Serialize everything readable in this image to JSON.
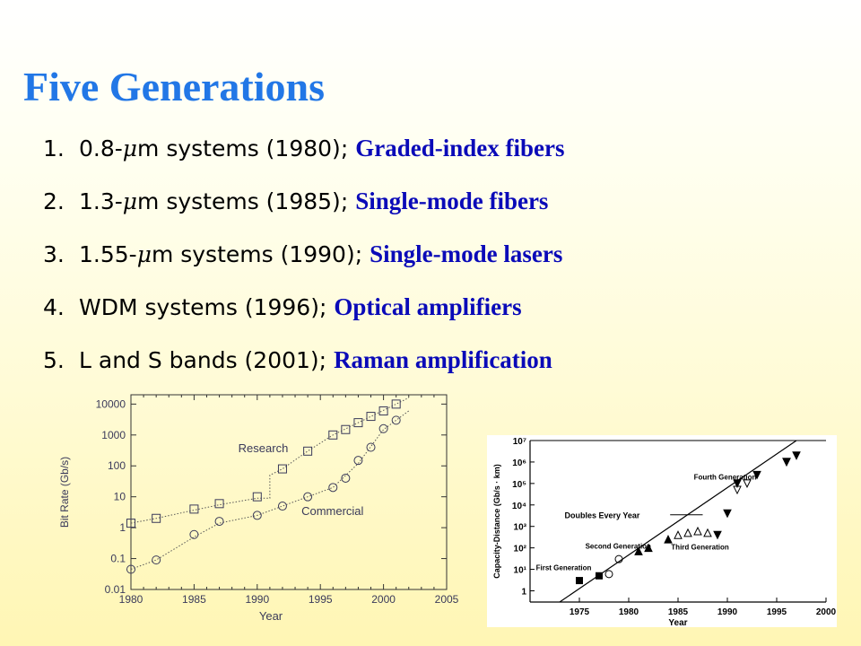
{
  "title": "Five Generations",
  "generations": [
    {
      "num": "1.",
      "wl_pre": "0.8-",
      "mu": "μ",
      "desc": "m systems (1980);",
      "tech": "Graded-index fibers"
    },
    {
      "num": "2.",
      "wl_pre": "1.3-",
      "mu": "μ",
      "desc": "m systems (1985);",
      "tech": "Single-mode fibers"
    },
    {
      "num": "3.",
      "wl_pre": "1.55-",
      "mu": "μ",
      "desc": "m systems (1990);",
      "tech": "Single-mode lasers"
    },
    {
      "num": "4.",
      "wl_pre": "",
      "mu": "",
      "desc": "WDM systems (1996);",
      "tech": "Optical amplifiers"
    },
    {
      "num": "5.",
      "wl_pre": "",
      "mu": "",
      "desc": "L and S bands (2001);",
      "tech": "Raman amplification"
    }
  ],
  "chart_data": [
    {
      "type": "scatter",
      "xlabel": "Year",
      "ylabel": "Bit Rate (Gb/s)",
      "xlim": [
        1980,
        2005
      ],
      "ylim": [
        0.01,
        20000
      ],
      "yscale": "log",
      "xticks": [
        1980,
        1985,
        1990,
        1995,
        2000,
        2005
      ],
      "yticks": [
        0.01,
        0.1,
        1,
        10,
        100,
        1000,
        10000
      ],
      "ytick_labels": [
        "0.01",
        "0.1",
        "1",
        "10",
        "100",
        "1000",
        "10000"
      ],
      "series": [
        {
          "name": "Research",
          "marker": "square",
          "points": [
            [
              1980,
              1.4
            ],
            [
              1982,
              2
            ],
            [
              1985,
              4
            ],
            [
              1987,
              6
            ],
            [
              1990,
              10
            ],
            [
              1992,
              80
            ],
            [
              1994,
              300
            ],
            [
              1996,
              1000
            ],
            [
              1997,
              1500
            ],
            [
              1998,
              2500
            ],
            [
              1999,
              4000
            ],
            [
              2000,
              6000
            ],
            [
              2001,
              10000
            ]
          ]
        },
        {
          "name": "Commercial",
          "marker": "circle",
          "points": [
            [
              1980,
              0.045
            ],
            [
              1982,
              0.09
            ],
            [
              1985,
              0.6
            ],
            [
              1987,
              1.6
            ],
            [
              1990,
              2.5
            ],
            [
              1992,
              5
            ],
            [
              1994,
              10
            ],
            [
              1996,
              20
            ],
            [
              1997,
              40
            ],
            [
              1998,
              150
            ],
            [
              1999,
              400
            ],
            [
              2000,
              1600
            ],
            [
              2001,
              3000
            ]
          ]
        }
      ]
    },
    {
      "type": "scatter",
      "xlabel": "Year",
      "ylabel": "Capacity-Distance (Gb/s · km)",
      "xlim": [
        1970,
        2000
      ],
      "ylim": [
        0.3,
        10000000
      ],
      "yscale": "log",
      "xticks": [
        1975,
        1980,
        1985,
        1990,
        1995,
        2000
      ],
      "yticks": [
        1,
        10,
        100,
        1000,
        10000,
        100000,
        1000000,
        10000000
      ],
      "ytick_labels": [
        "1",
        "10¹",
        "10²",
        "10³",
        "10⁴",
        "10⁵",
        "10⁶",
        "10⁷"
      ],
      "annotations": [
        "Doubles Every Year",
        "First Generation",
        "Second Generation",
        "Third Generation",
        "Fourth Generation"
      ],
      "trend": [
        [
          1973,
          0.3
        ],
        [
          1997,
          10000000
        ]
      ],
      "series": [
        {
          "marker": "square-filled",
          "points": [
            [
              1975,
              3
            ],
            [
              1977,
              5
            ]
          ]
        },
        {
          "marker": "circle",
          "points": [
            [
              1978,
              6
            ],
            [
              1979,
              30
            ]
          ]
        },
        {
          "marker": "triangle-filled",
          "points": [
            [
              1981,
              70
            ],
            [
              1982,
              100
            ],
            [
              1984,
              250
            ]
          ]
        },
        {
          "marker": "triangle-open",
          "points": [
            [
              1985,
              400
            ],
            [
              1986,
              500
            ],
            [
              1987,
              600
            ],
            [
              1988,
              500
            ]
          ]
        },
        {
          "marker": "triangle-down-filled",
          "points": [
            [
              1989,
              400
            ],
            [
              1990,
              4000
            ],
            [
              1991,
              100000
            ],
            [
              1993,
              250000
            ],
            [
              1996,
              1000000
            ],
            [
              1997,
              2000000
            ]
          ]
        },
        {
          "marker": "triangle-down-open",
          "points": [
            [
              1991,
              50000
            ],
            [
              1992,
              100000
            ],
            [
              1996,
              1000000
            ]
          ]
        }
      ]
    }
  ]
}
